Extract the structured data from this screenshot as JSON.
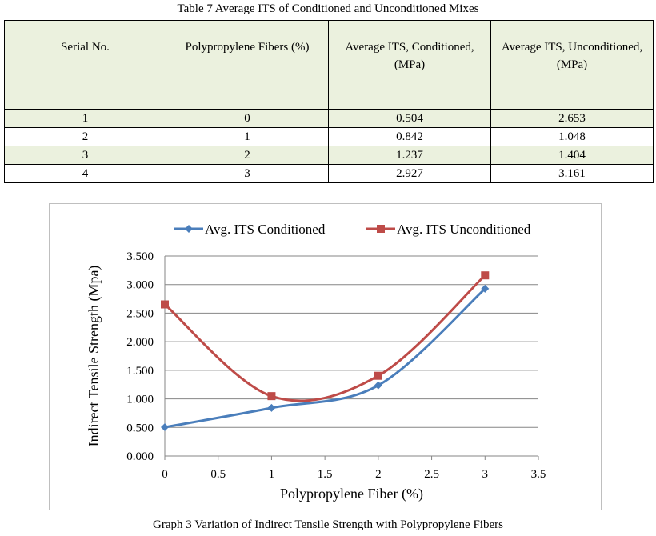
{
  "table_caption": "Table 7 Average ITS of Conditioned and Unconditioned Mixes",
  "table": {
    "headers": [
      "Serial No.",
      "Polypropylene Fibers (%)",
      "Average ITS, Conditioned, (MPa)",
      "Average ITS, Unconditioned, (MPa)"
    ],
    "rows": [
      [
        "1",
        "0",
        "0.504",
        "2.653"
      ],
      [
        "2",
        "1",
        "0.842",
        "1.048"
      ],
      [
        "3",
        "2",
        "1.237",
        "1.404"
      ],
      [
        "4",
        "3",
        "2.927",
        "3.161"
      ]
    ]
  },
  "graph_caption": "Graph 3 Variation of Indirect Tensile Strength with Polypropylene Fibers",
  "chart_data": {
    "type": "line",
    "smooth": true,
    "x": [
      0,
      1,
      2,
      3
    ],
    "series": [
      {
        "name": "Avg. ITS Conditioned",
        "values": [
          0.504,
          0.842,
          1.237,
          2.927
        ],
        "color": "#4a7ebb",
        "marker": "diamond"
      },
      {
        "name": "Avg. ITS Unconditioned",
        "values": [
          2.653,
          1.048,
          1.404,
          3.161
        ],
        "color": "#be4b48",
        "marker": "square"
      }
    ],
    "xlabel": "Polypropylene Fiber (%)",
    "ylabel": "Indirect Tensile Strength (Mpa)",
    "xlim": [
      0,
      3.5
    ],
    "ylim": [
      0,
      3.5
    ],
    "xticks": [
      "0",
      "0.5",
      "1",
      "1.5",
      "2",
      "2.5",
      "3",
      "3.5"
    ],
    "yticks": [
      "0.000",
      "0.500",
      "1.000",
      "1.500",
      "2.000",
      "2.500",
      "3.000",
      "3.500"
    ],
    "grid": "horizontal",
    "legend": "top"
  }
}
